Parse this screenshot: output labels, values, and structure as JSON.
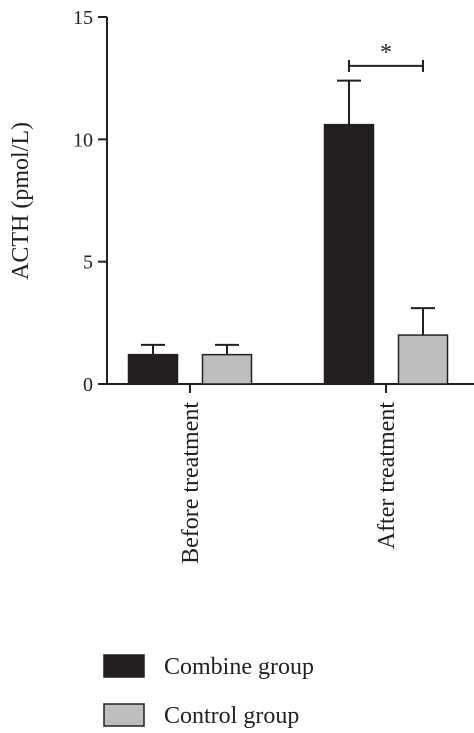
{
  "chart_data": {
    "type": "bar",
    "title": "",
    "xlabel": "",
    "ylabel": "ACTH (pmol/L)",
    "ylim": [
      0,
      15
    ],
    "yticks": [
      "0",
      "5",
      "10",
      "15"
    ],
    "categories": [
      "Before treatment",
      "After treatment"
    ],
    "series": [
      {
        "name": "Combine group",
        "color": "#231f20",
        "values": [
          1.2,
          10.6
        ],
        "errors": [
          0.4,
          1.8
        ]
      },
      {
        "name": "Control group",
        "color": "#bcbec0",
        "values": [
          1.2,
          2.0
        ],
        "errors": [
          0.4,
          1.1
        ]
      }
    ],
    "annotations": [
      {
        "text": "*",
        "category": "After treatment",
        "y": 13.0
      }
    ],
    "legend_position": "bottom",
    "grid": false
  }
}
